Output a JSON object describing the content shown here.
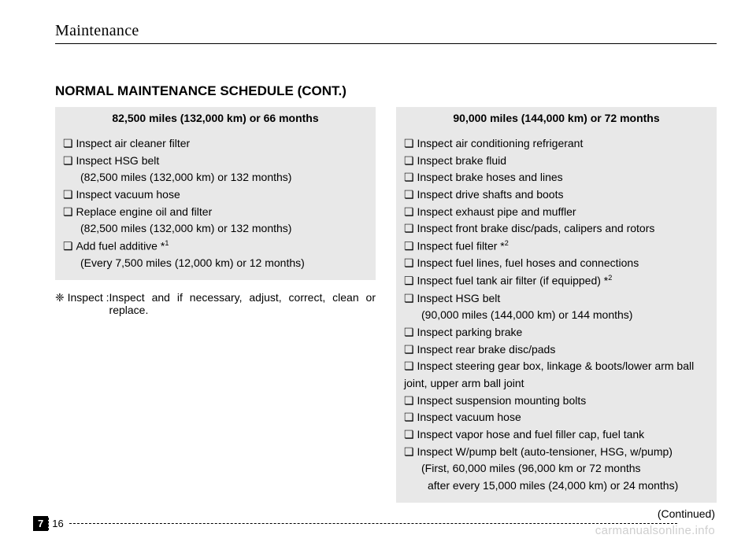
{
  "header": {
    "section": "Maintenance"
  },
  "title": "NORMAL MAINTENANCE SCHEDULE (CONT.)",
  "left": {
    "heading": "82,500 miles (132,000 km) or 66 months",
    "items": [
      {
        "text": "Inspect air cleaner filter"
      },
      {
        "text": "Inspect HSG belt",
        "sub": "(82,500 miles (132,000 km) or 132 months)"
      },
      {
        "text": "Inspect vacuum hose"
      },
      {
        "text": "Replace engine oil and filter",
        "sub": "(82,500 miles (132,000 km) or 132 months)"
      },
      {
        "text": "Add fuel additive *",
        "sup": "1",
        "sub": "(Every 7,500 miles (12,000 km) or 12 months)"
      }
    ],
    "note_lead": "❈ Inspect : ",
    "note_body": "Inspect and if necessary, adjust, correct, clean or replace."
  },
  "right": {
    "heading": "90,000 miles (144,000 km) or 72 months",
    "items": [
      {
        "text": "Inspect air conditioning refrigerant"
      },
      {
        "text": "Inspect brake fluid"
      },
      {
        "text": "Inspect brake hoses and lines"
      },
      {
        "text": "Inspect drive shafts and boots"
      },
      {
        "text": "Inspect exhaust pipe and muffler"
      },
      {
        "text": "Inspect front brake disc/pads, calipers and rotors"
      },
      {
        "text": "Inspect fuel filter *",
        "sup": "2"
      },
      {
        "text": "Inspect fuel lines, fuel hoses and connections"
      },
      {
        "text": "Inspect fuel tank air filter (if equipped) *",
        "sup": "2"
      },
      {
        "text": "Inspect HSG belt",
        "sub": "(90,000 miles (144,000 km) or 144 months)"
      },
      {
        "text": "Inspect parking brake"
      },
      {
        "text": "Inspect rear brake disc/pads"
      },
      {
        "text": "Inspect steering gear box, linkage & boots/lower arm ball joint, upper arm ball joint"
      },
      {
        "text": "Inspect suspension mounting bolts"
      },
      {
        "text": "Inspect vacuum hose"
      },
      {
        "text": "Inspect vapor hose and fuel filler cap, fuel tank"
      },
      {
        "text": "Inspect W/pump belt (auto-tensioner, HSG, w/pump)",
        "sub": "(First, 60,000 miles (96,000 km or 72 months",
        "sub2": " after every 15,000 miles (24,000 km) or 24 months)"
      }
    ],
    "continued": "(Continued)"
  },
  "footer": {
    "chapter": "7",
    "page": "16"
  },
  "watermark": "carmanualsonline.info",
  "bullet": "❏"
}
